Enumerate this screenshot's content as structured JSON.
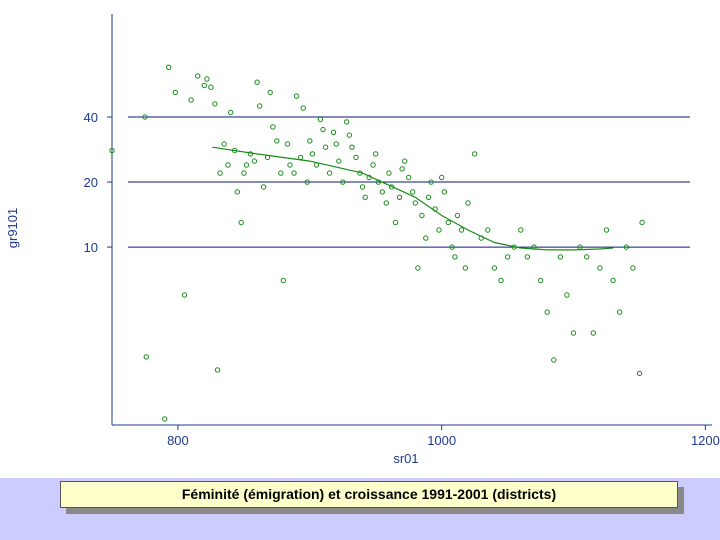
{
  "caption": "Féminité (émigration) et croissance 1991-2001 (districts)",
  "colors": {
    "axis": "#1f3a8f",
    "gridline": "#0a1a7a",
    "points": "#1a8c1a",
    "smooth_line": "#1a8c1a",
    "footer_bg": "#ccccff",
    "caption_bg": "#ffffcc"
  },
  "chart_data": {
    "type": "scatter",
    "title": "",
    "xlabel": "sr01",
    "ylabel": "gr9101",
    "y_scale": "log",
    "x_ticks": [
      800,
      1000,
      1200
    ],
    "y_ticks": [
      10,
      20,
      40
    ],
    "xlim": [
      750,
      1205
    ],
    "ylim": [
      1.5,
      120
    ],
    "grid": "horizontal lines at y ticks",
    "legend": "none",
    "points": [
      [
        750,
        28
      ],
      [
        775,
        40
      ],
      [
        776,
        3.1
      ],
      [
        790,
        1.6
      ],
      [
        793,
        68
      ],
      [
        798,
        52
      ],
      [
        805,
        6
      ],
      [
        810,
        48
      ],
      [
        815,
        62
      ],
      [
        820,
        56
      ],
      [
        822,
        60
      ],
      [
        825,
        55
      ],
      [
        828,
        46
      ],
      [
        830,
        2.7
      ],
      [
        832,
        22
      ],
      [
        835,
        30
      ],
      [
        838,
        24
      ],
      [
        840,
        42
      ],
      [
        843,
        28
      ],
      [
        845,
        18
      ],
      [
        848,
        13
      ],
      [
        850,
        22
      ],
      [
        852,
        24
      ],
      [
        855,
        27
      ],
      [
        858,
        25
      ],
      [
        860,
        58
      ],
      [
        862,
        45
      ],
      [
        865,
        19
      ],
      [
        868,
        26
      ],
      [
        870,
        52
      ],
      [
        872,
        36
      ],
      [
        875,
        31
      ],
      [
        878,
        22
      ],
      [
        880,
        7
      ],
      [
        883,
        30
      ],
      [
        885,
        24
      ],
      [
        888,
        22
      ],
      [
        890,
        50
      ],
      [
        893,
        26
      ],
      [
        895,
        44
      ],
      [
        898,
        20
      ],
      [
        900,
        31
      ],
      [
        902,
        27
      ],
      [
        905,
        24
      ],
      [
        908,
        39
      ],
      [
        910,
        35
      ],
      [
        912,
        29
      ],
      [
        915,
        22
      ],
      [
        918,
        34
      ],
      [
        920,
        30
      ],
      [
        922,
        25
      ],
      [
        925,
        20
      ],
      [
        928,
        38
      ],
      [
        930,
        33
      ],
      [
        932,
        29
      ],
      [
        935,
        26
      ],
      [
        938,
        22
      ],
      [
        940,
        19
      ],
      [
        942,
        17
      ],
      [
        945,
        21
      ],
      [
        948,
        24
      ],
      [
        950,
        27
      ],
      [
        952,
        20
      ],
      [
        955,
        18
      ],
      [
        958,
        16
      ],
      [
        960,
        22
      ],
      [
        962,
        19
      ],
      [
        965,
        13
      ],
      [
        968,
        17
      ],
      [
        970,
        23
      ],
      [
        972,
        25
      ],
      [
        975,
        21
      ],
      [
        978,
        18
      ],
      [
        980,
        16
      ],
      [
        982,
        8
      ],
      [
        985,
        14
      ],
      [
        988,
        11
      ],
      [
        990,
        17
      ],
      [
        992,
        20
      ],
      [
        995,
        15
      ],
      [
        998,
        12
      ],
      [
        1000,
        21
      ],
      [
        1002,
        18
      ],
      [
        1005,
        13
      ],
      [
        1008,
        10
      ],
      [
        1010,
        9
      ],
      [
        1012,
        14
      ],
      [
        1015,
        12
      ],
      [
        1018,
        8
      ],
      [
        1020,
        16
      ],
      [
        1025,
        27
      ],
      [
        1030,
        11
      ],
      [
        1035,
        12
      ],
      [
        1040,
        8
      ],
      [
        1045,
        7
      ],
      [
        1050,
        9
      ],
      [
        1055,
        10
      ],
      [
        1060,
        12
      ],
      [
        1065,
        9
      ],
      [
        1070,
        10
      ],
      [
        1075,
        7
      ],
      [
        1080,
        5
      ],
      [
        1085,
        3
      ],
      [
        1090,
        9
      ],
      [
        1095,
        6
      ],
      [
        1100,
        4
      ],
      [
        1105,
        10
      ],
      [
        1110,
        9
      ],
      [
        1115,
        4
      ],
      [
        1120,
        8
      ],
      [
        1125,
        12
      ],
      [
        1130,
        7
      ],
      [
        1135,
        5
      ],
      [
        1140,
        10
      ],
      [
        1145,
        8
      ],
      [
        1150,
        2.6
      ],
      [
        1152,
        13
      ]
    ],
    "smooth_line": [
      [
        826,
        29
      ],
      [
        860,
        27
      ],
      [
        900,
        25
      ],
      [
        940,
        22
      ],
      [
        980,
        17
      ],
      [
        1000,
        14
      ],
      [
        1020,
        12
      ],
      [
        1040,
        10.5
      ],
      [
        1060,
        9.9
      ],
      [
        1080,
        9.7
      ],
      [
        1100,
        9.7
      ],
      [
        1120,
        9.8
      ],
      [
        1130,
        9.9
      ]
    ]
  }
}
